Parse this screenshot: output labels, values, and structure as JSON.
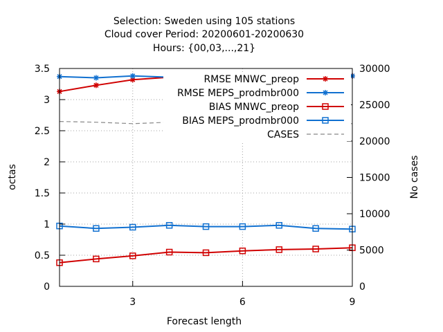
{
  "chart_data": {
    "type": "line",
    "title_lines": [
      "Selection: Sweden using   105 stations",
      "Cloud cover   Period: 20200601-20200630",
      "Hours: {00,03,...,21}"
    ],
    "xlabel": "Forecast length",
    "ylabel": "octas",
    "y2label": "No cases",
    "xlim": [
      1,
      9
    ],
    "ylim": [
      0,
      3.5
    ],
    "y2lim": [
      0,
      30000
    ],
    "x_ticks": [
      3,
      6,
      9
    ],
    "y_ticks": [
      0,
      0.5,
      1,
      1.5,
      2,
      2.5,
      3,
      3.5
    ],
    "y_tick_labels": [
      "0",
      "0.5",
      "1",
      "1.5",
      "2",
      "2.5",
      "3",
      "3.5"
    ],
    "y2_ticks": [
      0,
      5000,
      10000,
      15000,
      20000,
      25000,
      30000
    ],
    "grid": true,
    "legend_position": "top-right",
    "x": [
      1,
      2,
      3,
      4,
      5,
      6,
      7,
      8,
      9
    ],
    "series": [
      {
        "name": "RMSE MNWC_preop",
        "axis": "y",
        "color": "#d00000",
        "marker": "star",
        "dash": false,
        "values": [
          3.13,
          3.23,
          3.32,
          3.36,
          3.37,
          3.39,
          3.39,
          3.35,
          3.38
        ]
      },
      {
        "name": "RMSE MEPS_prodmbr000",
        "axis": "y",
        "color": "#1070d0",
        "marker": "star",
        "dash": false,
        "values": [
          3.37,
          3.35,
          3.38,
          3.36,
          3.37,
          3.39,
          3.39,
          3.36,
          3.38
        ]
      },
      {
        "name": "BIAS MNWC_preop",
        "axis": "y",
        "color": "#d00000",
        "marker": "square",
        "dash": false,
        "values": [
          0.38,
          0.44,
          0.49,
          0.55,
          0.54,
          0.57,
          0.59,
          0.6,
          0.62
        ]
      },
      {
        "name": "BIAS MEPS_prodmbr000",
        "axis": "y",
        "color": "#1070d0",
        "marker": "square",
        "dash": false,
        "values": [
          0.97,
          0.93,
          0.95,
          0.98,
          0.96,
          0.96,
          0.98,
          0.93,
          0.92
        ]
      },
      {
        "name": "CASES",
        "axis": "y2",
        "color": "#888888",
        "marker": "none",
        "dash": true,
        "values": [
          22700,
          22600,
          22400,
          22600,
          22700,
          22600,
          22500,
          22600,
          22400
        ]
      }
    ]
  }
}
